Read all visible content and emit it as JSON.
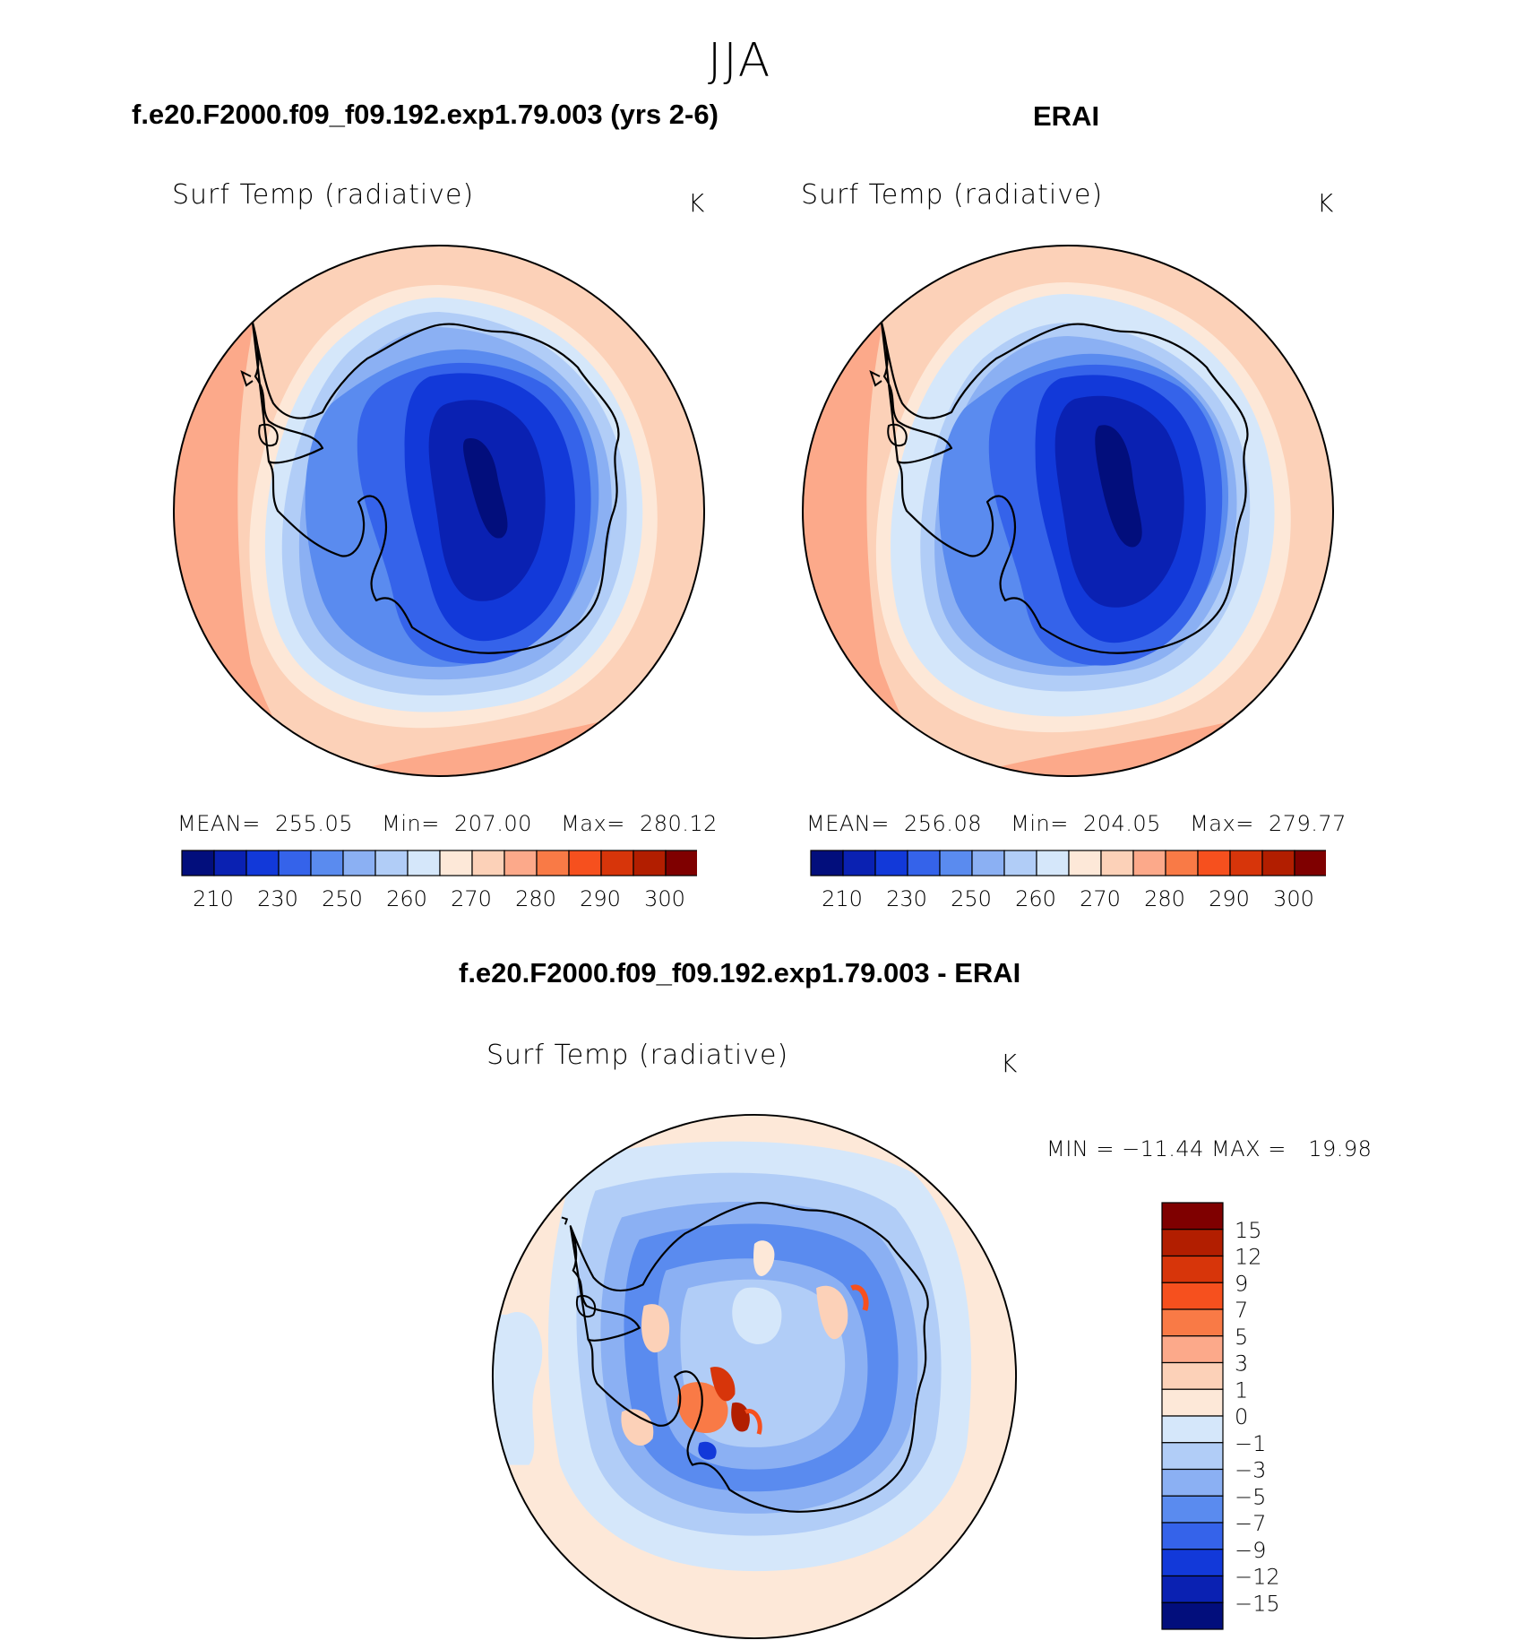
{
  "season": "JJA",
  "panels": [
    {
      "title": "f.e20.F2000.f09_f09.192.exp1.79.003 (yrs 2-6)",
      "variable": "Surf Temp (radiative)",
      "units": "K",
      "mean_label": "MEAN=",
      "mean": "255.05",
      "min_label": "Min=",
      "min": "207.00",
      "max_label": "Max=",
      "max": "280.12"
    },
    {
      "title": "ERAI",
      "variable": "Surf Temp (radiative)",
      "units": "K",
      "mean_label": "MEAN=",
      "mean": "256.08",
      "min_label": "Min=",
      "min": "204.05",
      "max_label": "Max=",
      "max": "279.77"
    }
  ],
  "diff": {
    "title": "f.e20.F2000.f09_f09.192.exp1.79.003 - ERAI",
    "variable": "Surf Temp (radiative)",
    "units": "K",
    "minmax": "MIN = −11.44 MAX =   19.98",
    "colorbar_labels": [
      "15",
      "12",
      "9",
      "7",
      "5",
      "3",
      "1",
      "0",
      "−1",
      "−3",
      "−5",
      "−7",
      "−9",
      "−12",
      "−15"
    ],
    "colorbar_colors": [
      "#7f0000",
      "#b21e00",
      "#d7350a",
      "#f6501e",
      "#f97a46",
      "#fca98a",
      "#fcd1b8",
      "#fde8d8",
      "#d5e7fa",
      "#b1cdf7",
      "#8bb0f3",
      "#5a8bef",
      "#3563ea",
      "#1239d9",
      "#0a21b2",
      "#020e7c"
    ]
  },
  "abs_colorbar": {
    "labels": [
      "210",
      "230",
      "250",
      "260",
      "270",
      "280",
      "290",
      "300"
    ],
    "colors": [
      "#020e7c",
      "#0a21b2",
      "#1239d9",
      "#3563ea",
      "#5a8bef",
      "#8bb0f3",
      "#b1cdf7",
      "#d5e7fa",
      "#fde8d8",
      "#fcd1b8",
      "#fca98a",
      "#f97a46",
      "#f6501e",
      "#d7350a",
      "#b21e00",
      "#7f0000"
    ]
  }
}
